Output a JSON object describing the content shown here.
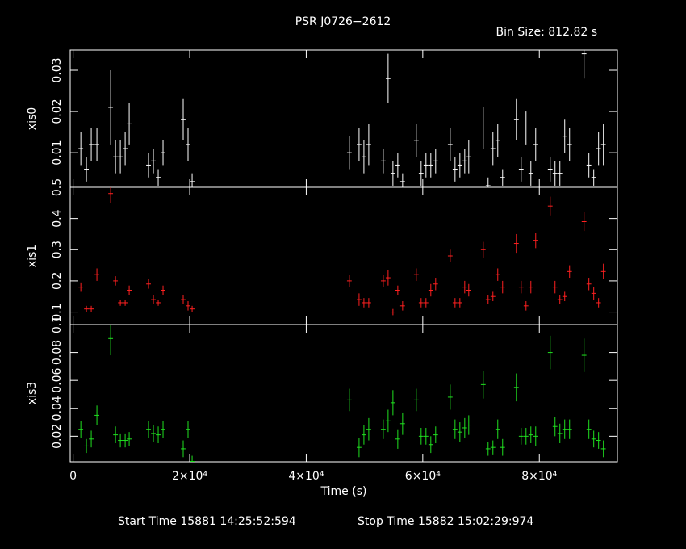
{
  "header": {
    "title": "PSR J0726−2612",
    "bin_size": "Bin Size: 812.82 s"
  },
  "footer": {
    "start": "Start Time 15881 14:25:52:594",
    "stop": "Stop Time 15882 15:02:29:974"
  },
  "chart_data": [
    {
      "type": "errorbar",
      "ylabel": "xis0",
      "color": "#ffffff",
      "x": [
        1320,
        2280,
        3110,
        4080,
        6440,
        7270,
        8100,
        8930,
        9620,
        12940,
        13770,
        14600,
        15430,
        18890,
        19720,
        20420,
        47400,
        49070,
        49900,
        50730,
        53220,
        54050,
        54880,
        55710,
        56540,
        58890,
        59720,
        60550,
        61380,
        62210,
        64710,
        65540,
        66370,
        67200,
        67890,
        70380,
        71210,
        72040,
        72870,
        73700,
        76060,
        76890,
        77720,
        78550,
        79380,
        81870,
        82700,
        83530,
        84360,
        85190,
        87680,
        88510,
        89340,
        90170,
        91000
      ],
      "xerr": 406,
      "series": [
        {
          "values": [
            0.011,
            0.006,
            0.012,
            0.012,
            0.021,
            0.009,
            0.009,
            0.011,
            0.017,
            0.007,
            0.008,
            0.004,
            0.01,
            0.018,
            0.012,
            0.003,
            0.01,
            0.012,
            0.009,
            0.012,
            0.008,
            0.028,
            0.005,
            0.007,
            0.003,
            0.013,
            0.005,
            0.007,
            0.007,
            0.008,
            0.012,
            0.006,
            0.007,
            0.008,
            0.009,
            0.016,
            0.002,
            0.011,
            0.013,
            0.004,
            0.018,
            0.006,
            0.016,
            0.005,
            0.012,
            0.006,
            0.005,
            0.005,
            0.014,
            0.012,
            0.034,
            0.007,
            0.004,
            0.011,
            0.012
          ],
          "errors": [
            0.004,
            0.003,
            0.004,
            0.004,
            0.009,
            0.004,
            0.004,
            0.004,
            0.005,
            0.003,
            0.003,
            0.002,
            0.003,
            0.005,
            0.004,
            0.002,
            0.004,
            0.004,
            0.004,
            0.005,
            0.003,
            0.006,
            0.003,
            0.003,
            0.002,
            0.004,
            0.003,
            0.003,
            0.003,
            0.003,
            0.004,
            0.003,
            0.003,
            0.003,
            0.004,
            0.005,
            0.002,
            0.004,
            0.004,
            0.002,
            0.005,
            0.003,
            0.004,
            0.003,
            0.004,
            0.003,
            0.003,
            0.003,
            0.004,
            0.004,
            0.006,
            0.003,
            0.002,
            0.004,
            0.005
          ]
        }
      ],
      "xlim": [
        -500,
        93400
      ],
      "xticks": [
        0,
        20000,
        40000,
        60000,
        80000
      ],
      "ylim": [
        0.0016,
        0.0349
      ],
      "yticks": [
        0.01,
        0.02,
        0.03
      ]
    },
    {
      "type": "errorbar",
      "ylabel": "xis1",
      "color": "#ff2020",
      "x": [
        1320,
        2280,
        3110,
        4080,
        6440,
        7270,
        8100,
        8930,
        9620,
        12940,
        13770,
        14600,
        15430,
        18890,
        19720,
        20420,
        47400,
        49070,
        49900,
        50730,
        53220,
        54050,
        54880,
        55710,
        56540,
        58890,
        59720,
        60550,
        61380,
        62210,
        64710,
        65540,
        66370,
        67200,
        67890,
        70380,
        71210,
        72040,
        72870,
        73700,
        76060,
        76890,
        77720,
        78550,
        79380,
        81870,
        82700,
        83530,
        84360,
        85190,
        87680,
        88510,
        89340,
        90170,
        91000
      ],
      "xerr": 406,
      "series": [
        {
          "values": [
            0.18,
            0.11,
            0.11,
            0.22,
            0.48,
            0.2,
            0.13,
            0.13,
            0.17,
            0.19,
            0.14,
            0.13,
            0.17,
            0.14,
            0.12,
            0.11,
            0.2,
            0.14,
            0.13,
            0.13,
            0.2,
            0.21,
            0.1,
            0.17,
            0.12,
            0.22,
            0.13,
            0.13,
            0.17,
            0.19,
            0.28,
            0.13,
            0.13,
            0.18,
            0.17,
            0.3,
            0.14,
            0.15,
            0.22,
            0.18,
            0.32,
            0.18,
            0.12,
            0.18,
            0.33,
            0.44,
            0.18,
            0.14,
            0.15,
            0.23,
            0.39,
            0.19,
            0.16,
            0.13,
            0.23
          ],
          "errors": [
            0.015,
            0.01,
            0.01,
            0.02,
            0.03,
            0.015,
            0.01,
            0.01,
            0.015,
            0.015,
            0.015,
            0.01,
            0.015,
            0.015,
            0.015,
            0.01,
            0.02,
            0.02,
            0.015,
            0.015,
            0.02,
            0.025,
            0.01,
            0.015,
            0.015,
            0.02,
            0.015,
            0.015,
            0.02,
            0.02,
            0.02,
            0.015,
            0.015,
            0.02,
            0.02,
            0.025,
            0.015,
            0.015,
            0.02,
            0.02,
            0.03,
            0.02,
            0.015,
            0.02,
            0.025,
            0.03,
            0.02,
            0.015,
            0.015,
            0.02,
            0.03,
            0.02,
            0.02,
            0.015,
            0.025
          ]
        }
      ],
      "xlim": [
        -500,
        93400
      ],
      "xticks": [
        0,
        20000,
        40000,
        60000,
        80000
      ],
      "ylim": [
        0.06,
        0.5
      ],
      "yticks": [
        0.1,
        0.2,
        0.3,
        0.4,
        0.5
      ]
    },
    {
      "type": "errorbar",
      "ylabel": "xis3",
      "xlabel": "Time (s)",
      "color": "#20e020",
      "x": [
        1320,
        2280,
        3110,
        4080,
        6440,
        7270,
        8100,
        8930,
        9620,
        12940,
        13770,
        14600,
        15430,
        18890,
        19720,
        20420,
        47400,
        49070,
        49900,
        50730,
        53220,
        54050,
        54880,
        55710,
        56540,
        58890,
        59720,
        60550,
        61380,
        62210,
        64710,
        65540,
        66370,
        67200,
        67890,
        70380,
        71210,
        72040,
        72870,
        73700,
        76060,
        76890,
        77720,
        78550,
        79380,
        81870,
        82700,
        83530,
        84360,
        85190,
        87680,
        88510,
        89340,
        90170,
        91000
      ],
      "xerr": 406,
      "series": [
        {
          "values": [
            0.025,
            0.013,
            0.018,
            0.035,
            0.09,
            0.021,
            0.017,
            0.017,
            0.018,
            0.025,
            0.022,
            0.021,
            0.025,
            0.011,
            0.025,
            0.002,
            0.046,
            0.012,
            0.021,
            0.025,
            0.025,
            0.031,
            0.044,
            0.018,
            0.029,
            0.046,
            0.02,
            0.02,
            0.014,
            0.021,
            0.048,
            0.025,
            0.023,
            0.026,
            0.028,
            0.057,
            0.011,
            0.012,
            0.025,
            0.012,
            0.055,
            0.02,
            0.02,
            0.021,
            0.02,
            0.08,
            0.027,
            0.022,
            0.025,
            0.025,
            0.078,
            0.025,
            0.018,
            0.017,
            0.011
          ],
          "errors": [
            0.006,
            0.005,
            0.006,
            0.007,
            0.012,
            0.006,
            0.005,
            0.005,
            0.005,
            0.006,
            0.006,
            0.006,
            0.006,
            0.006,
            0.006,
            0.004,
            0.008,
            0.007,
            0.007,
            0.008,
            0.007,
            0.008,
            0.009,
            0.007,
            0.008,
            0.008,
            0.006,
            0.006,
            0.006,
            0.006,
            0.009,
            0.007,
            0.007,
            0.007,
            0.007,
            0.01,
            0.005,
            0.005,
            0.007,
            0.006,
            0.01,
            0.006,
            0.006,
            0.006,
            0.007,
            0.012,
            0.007,
            0.007,
            0.007,
            0.007,
            0.012,
            0.007,
            0.006,
            0.006,
            0.006
          ]
        }
      ],
      "xlim": [
        -500,
        93400
      ],
      "xticks": [
        {
          "value": 0,
          "label": "0"
        },
        {
          "value": 20000,
          "label": "2×10⁴"
        },
        {
          "value": 40000,
          "label": "4×10⁴"
        },
        {
          "value": 60000,
          "label": "6×10⁴"
        },
        {
          "value": 80000,
          "label": "8×10⁴"
        }
      ],
      "ylim": [
        0.0017,
        0.1
      ],
      "yticks": [
        0.02,
        0.04,
        0.06,
        0.08,
        0.1
      ]
    }
  ]
}
